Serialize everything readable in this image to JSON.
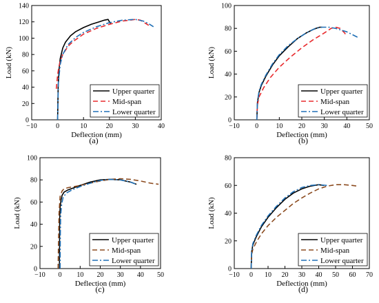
{
  "chart_data": [
    {
      "type": "line",
      "panel_label": "(a)",
      "xlabel": "Deflection (mm)",
      "ylabel": "Load (kN)",
      "xlim": [
        -10,
        40
      ],
      "ylim": [
        0,
        140
      ],
      "xticks": [
        "−10",
        "0",
        "10",
        "20",
        "30",
        "40"
      ],
      "yticks": [
        "0",
        "20",
        "40",
        "60",
        "80",
        "100",
        "120",
        "140"
      ],
      "legend_position": "bottom-right",
      "series": [
        {
          "name": "Upper quarter",
          "color": "#000000",
          "style": "solid",
          "x": [
            0,
            0.2,
            0.5,
            1,
            2,
            3,
            5,
            7,
            10,
            13,
            16,
            18,
            19.5,
            20,
            20.5
          ],
          "y": [
            0,
            40,
            60,
            75,
            88,
            95,
            103,
            108,
            113,
            117,
            120,
            122,
            123,
            120,
            118
          ]
        },
        {
          "name": "Mid-span",
          "color": "#e8282b",
          "style": "dash",
          "x": [
            -0.5,
            0,
            0.5,
            1,
            2,
            4,
            6,
            10,
            15,
            20,
            25,
            28,
            30,
            32,
            34,
            36
          ],
          "y": [
            38,
            55,
            65,
            72,
            80,
            90,
            96,
            105,
            112,
            117,
            121,
            122,
            123,
            122,
            118,
            114
          ]
        },
        {
          "name": "Lower quarter",
          "color": "#1f6fb5",
          "style": "dashdot",
          "x": [
            0,
            0.3,
            1,
            2,
            4,
            7,
            10,
            15,
            20,
            25,
            30,
            33,
            35,
            37
          ],
          "y": [
            0,
            45,
            68,
            80,
            92,
            101,
            107,
            114,
            119,
            122,
            123,
            121,
            118,
            114
          ]
        }
      ]
    },
    {
      "type": "line",
      "panel_label": "(b)",
      "xlabel": "Deflection (mm)",
      "ylabel": "Load (kN)",
      "xlim": [
        -10,
        50
      ],
      "ylim": [
        0,
        100
      ],
      "xticks": [
        "−10",
        "0",
        "10",
        "20",
        "30",
        "40",
        "50"
      ],
      "yticks": [
        "0",
        "20",
        "40",
        "60",
        "80",
        "100"
      ],
      "legend_position": "bottom-right",
      "series": [
        {
          "name": "Upper quarter",
          "color": "#000000",
          "style": "solid",
          "x": [
            0,
            0.3,
            1,
            2,
            4,
            7,
            10,
            14,
            18,
            22,
            25,
            27,
            28,
            29
          ],
          "y": [
            0,
            15,
            24,
            30,
            38,
            48,
            56,
            64,
            71,
            76,
            79,
            80.5,
            81,
            81
          ]
        },
        {
          "name": "Mid-span",
          "color": "#e8282b",
          "style": "dash",
          "x": [
            0,
            0.3,
            1,
            3,
            6,
            10,
            15,
            20,
            25,
            30,
            33,
            35,
            37,
            39,
            40
          ],
          "y": [
            0,
            13,
            20,
            28,
            37,
            46,
            55,
            63,
            70,
            76,
            80,
            81,
            80,
            76,
            73
          ]
        },
        {
          "name": "Lower quarter",
          "color": "#1f6fb5",
          "style": "dashdot",
          "x": [
            0,
            0.3,
            1,
            2,
            4,
            7,
            10,
            14,
            18,
            22,
            26,
            29,
            32,
            35,
            40,
            45
          ],
          "y": [
            0,
            16,
            25,
            31,
            39,
            49,
            57,
            65,
            71,
            76,
            80,
            81,
            81,
            80,
            77,
            72
          ]
        }
      ]
    },
    {
      "type": "line",
      "panel_label": "(c)",
      "xlabel": "Deflection (mm)",
      "ylabel": "Load (kN)",
      "xlim": [
        -10,
        50
      ],
      "ylim": [
        0,
        100
      ],
      "xticks": [
        "−10",
        "0",
        "10",
        "20",
        "30",
        "40",
        "50"
      ],
      "yticks": [
        "0",
        "20",
        "40",
        "60",
        "80",
        "100"
      ],
      "legend_position": "bottom-right",
      "series": [
        {
          "name": "Upper quarter",
          "color": "#000000",
          "style": "solid",
          "x": [
            -0.3,
            -0.3,
            -0.2,
            0,
            0.5,
            1,
            2,
            4,
            7,
            10,
            15,
            20,
            25,
            30,
            35,
            38
          ],
          "y": [
            0,
            8,
            45,
            55,
            62,
            66,
            69,
            71,
            73,
            75,
            78,
            80,
            80.5,
            80,
            78,
            76
          ]
        },
        {
          "name": "Mid-span",
          "color": "#8b4a1e",
          "style": "dash",
          "x": [
            -1,
            -0.8,
            -0.5,
            0,
            1,
            2,
            4,
            7,
            10,
            15,
            20,
            25,
            30,
            35,
            40,
            45,
            49
          ],
          "y": [
            0,
            20,
            50,
            65,
            70,
            72,
            73,
            74,
            75,
            77,
            79,
            80.5,
            81,
            80.5,
            79,
            77,
            76
          ]
        },
        {
          "name": "Lower quarter",
          "color": "#1f6fb5",
          "style": "dashdot",
          "x": [
            0,
            0.1,
            0.3,
            0.8,
            1.5,
            3,
            6,
            10,
            15,
            20,
            25,
            30,
            35,
            38
          ],
          "y": [
            0,
            30,
            48,
            58,
            64,
            68,
            71,
            74,
            77,
            79.5,
            80.5,
            80,
            78,
            76
          ]
        }
      ]
    },
    {
      "type": "line",
      "panel_label": "(d)",
      "xlabel": "Deflection (mm)",
      "ylabel": "Load (kN)",
      "xlim": [
        -10,
        70
      ],
      "ylim": [
        0,
        80
      ],
      "xticks": [
        "−10",
        "0",
        "10",
        "20",
        "30",
        "40",
        "50",
        "60",
        "70"
      ],
      "yticks": [
        "0",
        "20",
        "40",
        "60",
        "80"
      ],
      "legend_position": "bottom-right",
      "series": [
        {
          "name": "Upper quarter",
          "color": "#000000",
          "style": "solid",
          "x": [
            0,
            0.3,
            1,
            3,
            6,
            10,
            15,
            20,
            25,
            30,
            35,
            40,
            43
          ],
          "y": [
            0,
            12,
            17,
            23,
            30,
            37,
            44,
            50,
            54.5,
            57.5,
            59.5,
            60.5,
            60
          ]
        },
        {
          "name": "Mid-span",
          "color": "#8b4a1e",
          "style": "dash",
          "x": [
            0,
            0.3,
            1,
            3,
            6,
            10,
            15,
            20,
            25,
            30,
            35,
            40,
            45,
            50,
            55,
            60,
            63
          ],
          "y": [
            0,
            10,
            14,
            19,
            25,
            31,
            37,
            42,
            47,
            51,
            54.5,
            57.5,
            59.5,
            60.5,
            60.5,
            60,
            59.5
          ]
        },
        {
          "name": "Lower quarter",
          "color": "#1f6fb5",
          "style": "dashdot",
          "x": [
            0,
            0.3,
            1,
            3,
            6,
            10,
            15,
            20,
            25,
            30,
            35,
            40,
            45
          ],
          "y": [
            0,
            12,
            18,
            24,
            31,
            38,
            45,
            51,
            55.5,
            58.5,
            60,
            60.5,
            60
          ]
        }
      ]
    }
  ]
}
